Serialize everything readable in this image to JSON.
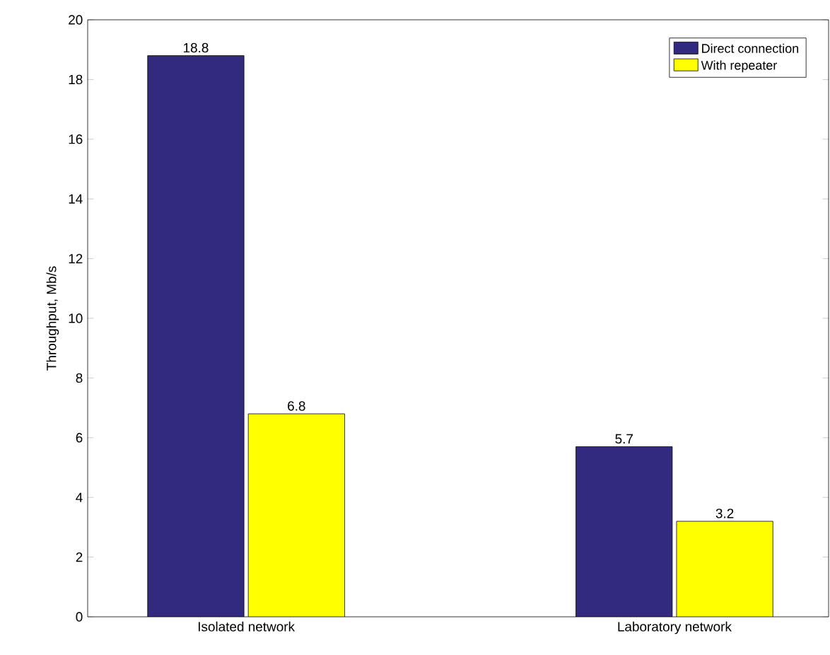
{
  "chart_data": {
    "type": "bar",
    "ylabel": "Throughput, Mb/s",
    "categories": [
      "Isolated network",
      "Laboratory network"
    ],
    "series": [
      {
        "name": "Direct connection",
        "color": "#312a7f",
        "values": [
          18.8,
          5.7
        ]
      },
      {
        "name": "With repeater",
        "color": "#ffff00",
        "values": [
          6.8,
          3.2
        ]
      }
    ],
    "ylim": [
      0,
      20
    ],
    "yticks": [
      0,
      2,
      4,
      6,
      8,
      10,
      12,
      14,
      16,
      18,
      20
    ],
    "data_labels": true,
    "legend": "top right",
    "grid": false
  }
}
